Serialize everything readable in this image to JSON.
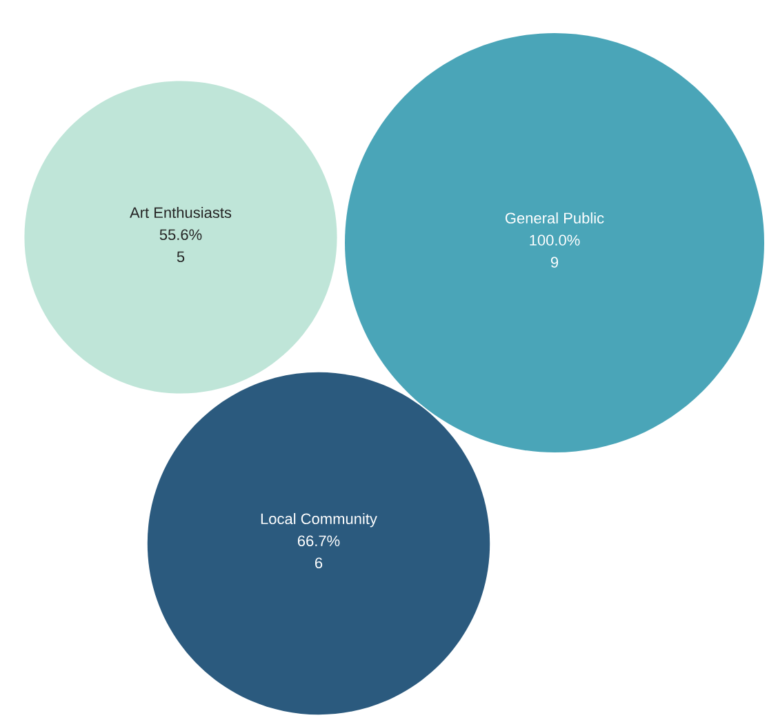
{
  "chart_data": {
    "type": "other",
    "categories": [
      "Art Enthusiasts",
      "General Public",
      "Local Community"
    ],
    "values": [
      5,
      9,
      6
    ],
    "annotations": [
      "55.6%",
      "100.0%",
      "66.7%"
    ],
    "colors": [
      "#bfe5d8",
      "#4aa5b8",
      "#2b5a7e"
    ],
    "data_labels": true
  }
}
